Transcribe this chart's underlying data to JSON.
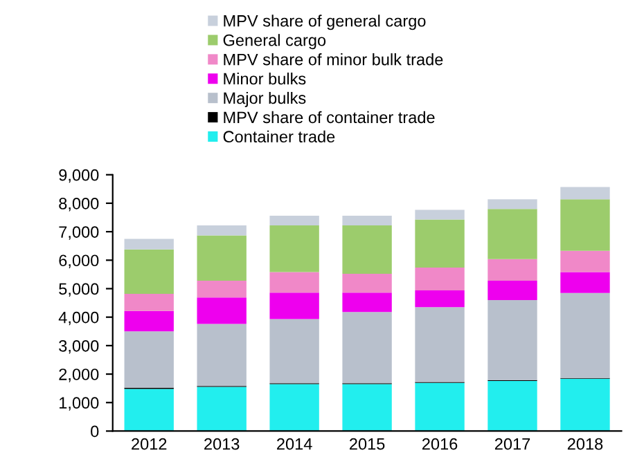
{
  "chart_data": {
    "type": "bar",
    "stacked": true,
    "legend": "top",
    "categories": [
      "2012",
      "2013",
      "2014",
      "2015",
      "2016",
      "2017",
      "2018"
    ],
    "series": [
      {
        "name": "Container trade",
        "color": "#22eeee",
        "values": [
          1480,
          1550,
          1650,
          1650,
          1690,
          1760,
          1840
        ]
      },
      {
        "name": "MPV share of container trade",
        "color": "#000000",
        "values": [
          40,
          30,
          30,
          30,
          30,
          30,
          20
        ]
      },
      {
        "name": "Major bulks",
        "color": "#b8c0cc",
        "values": [
          1980,
          2180,
          2250,
          2500,
          2630,
          2810,
          2990
        ]
      },
      {
        "name": "Minor bulks",
        "color": "#ee00ee",
        "values": [
          720,
          930,
          930,
          680,
          590,
          680,
          730
        ]
      },
      {
        "name": "MPV share of minor bulk trade",
        "color": "#f088c8",
        "values": [
          600,
          590,
          720,
          660,
          800,
          760,
          750
        ]
      },
      {
        "name": "General cargo",
        "color": "#9ccc6c",
        "values": [
          1560,
          1590,
          1640,
          1700,
          1690,
          1760,
          1810
        ]
      },
      {
        "name": "MPV share of general cargo",
        "color": "#c8d0dc",
        "values": [
          370,
          350,
          340,
          340,
          340,
          340,
          430
        ]
      }
    ],
    "ylim": [
      0,
      9000
    ],
    "yticks": [
      {
        "value": 0,
        "label": "0"
      },
      {
        "value": 1000,
        "label": "1,000"
      },
      {
        "value": 2000,
        "label": "2,000"
      },
      {
        "value": 3000,
        "label": "3,000"
      },
      {
        "value": 4000,
        "label": "4,000"
      },
      {
        "value": 5000,
        "label": "5,000"
      },
      {
        "value": 6000,
        "label": "6,000"
      },
      {
        "value": 7000,
        "label": "7,000"
      },
      {
        "value": 8000,
        "label": "8,000"
      },
      {
        "value": 9000,
        "label": "9,000"
      }
    ],
    "grid": false
  }
}
